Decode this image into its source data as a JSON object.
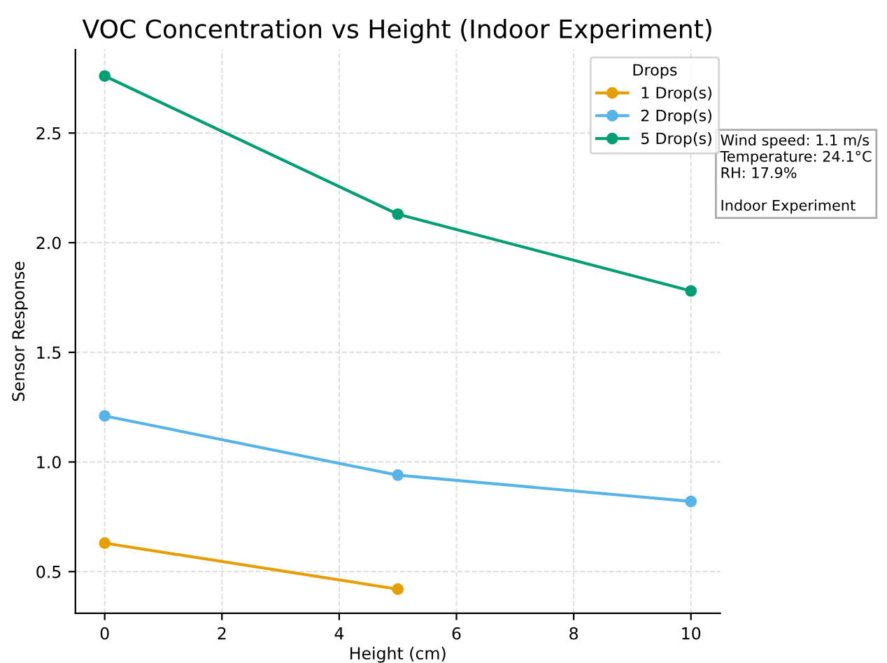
{
  "chart_data": {
    "type": "line",
    "title": "VOC Concentration vs Height (Indoor Experiment)",
    "xlabel": "Height (cm)",
    "ylabel": "Sensor Response",
    "legend_title": "Drops",
    "series": [
      {
        "name": "1 Drop(s)",
        "color": "#e69f00",
        "x": [
          0,
          5
        ],
        "values": [
          0.63,
          0.42
        ]
      },
      {
        "name": "2 Drop(s)",
        "color": "#56b4e9",
        "x": [
          0,
          5,
          10
        ],
        "values": [
          1.21,
          0.94,
          0.82
        ]
      },
      {
        "name": "5 Drop(s)",
        "color": "#009e73",
        "x": [
          0,
          5,
          10
        ],
        "values": [
          2.76,
          2.13,
          1.78
        ]
      }
    ],
    "xlim": [
      -0.5,
      10.5
    ],
    "xticks": [
      0,
      2,
      4,
      6,
      8,
      10
    ],
    "ylim": [
      0.31,
      2.88
    ],
    "yticks": [
      0.5,
      {
        "value": 1,
        "label": "1.0"
      },
      1.5,
      {
        "value": 2,
        "label": "2.0"
      },
      2.5
    ],
    "annotations": [
      "Wind speed: 1.1 m/s\nTemperature: 24.1°C\nRH: 17.9%\n\nIndoor Experiment"
    ],
    "grid": true,
    "legend": "top right",
    "marker": "circle",
    "line_style": "solid"
  }
}
